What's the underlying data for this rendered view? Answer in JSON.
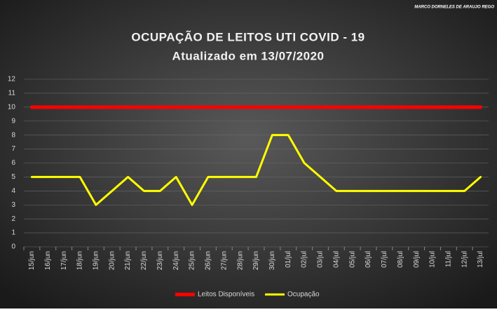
{
  "chart_data": {
    "type": "line",
    "title": "OCUPAÇÃO  DE  LEITOS  UTI  COVID  -  19",
    "subtitle": "Atualizado  em 13/07/2020",
    "watermark": "MARCO DORNELES DE ARAUJO REGO",
    "categories": [
      "15/jun",
      "16/jun",
      "17/jun",
      "18/jun",
      "19/jun",
      "20/jun",
      "21/jun",
      "22/jun",
      "23/jun",
      "24/jun",
      "25/jun",
      "26/jun",
      "27/jun",
      "28/jun",
      "29/jun",
      "30/jun",
      "01/jul",
      "02/jul",
      "03/jul",
      "04/jul",
      "05/jul",
      "06/jul",
      "07/jul",
      "08/jul",
      "09/jul",
      "10/jul",
      "11/jul",
      "12/jul",
      "13/jul"
    ],
    "series": [
      {
        "name": "Leitos Disponíveis",
        "color": "#ff0000",
        "width": 5,
        "values": [
          10,
          10,
          10,
          10,
          10,
          10,
          10,
          10,
          10,
          10,
          10,
          10,
          10,
          10,
          10,
          10,
          10,
          10,
          10,
          10,
          10,
          10,
          10,
          10,
          10,
          10,
          10,
          10,
          10
        ]
      },
      {
        "name": "Ocupação",
        "color": "#ffff00",
        "width": 3,
        "values": [
          5,
          5,
          5,
          5,
          3,
          4,
          5,
          4,
          4,
          5,
          3,
          5,
          5,
          5,
          5,
          8,
          8,
          6,
          5,
          4,
          4,
          4,
          4,
          4,
          4,
          4,
          4,
          4,
          5
        ]
      }
    ],
    "ylim": [
      0,
      12
    ],
    "yticks": [
      0,
      1,
      2,
      3,
      4,
      5,
      6,
      7,
      8,
      9,
      10,
      11,
      12
    ],
    "grid": true,
    "legend": "bottom"
  }
}
